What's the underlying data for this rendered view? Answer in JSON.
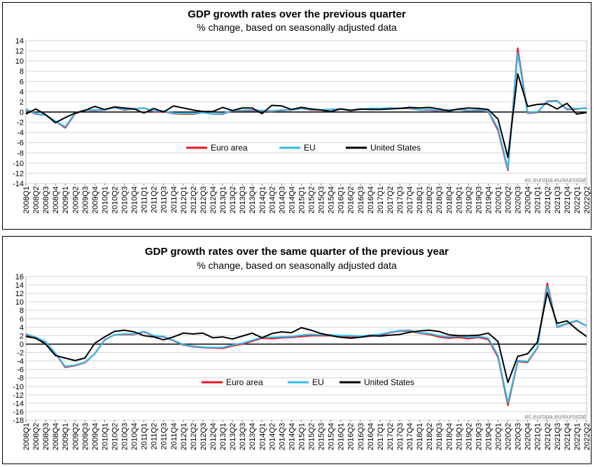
{
  "colors": {
    "euro_area": "#e8161b",
    "eu": "#33bbee",
    "us": "#000000",
    "grid": "#d4d4d4",
    "zero": "#000000"
  },
  "quarters": [
    "2008Q1",
    "2008Q2",
    "2008Q3",
    "2008Q4",
    "2009Q1",
    "2009Q2",
    "2009Q3",
    "2009Q4",
    "2010Q1",
    "2010Q2",
    "2010Q3",
    "2010Q4",
    "2011Q1",
    "2011Q2",
    "2011Q3",
    "2011Q4",
    "2012Q1",
    "2012Q2",
    "2012Q3",
    "2012Q4",
    "2013Q1",
    "2013Q2",
    "2013Q3",
    "2013Q4",
    "2014Q1",
    "2014Q2",
    "2014Q3",
    "2014Q4",
    "2015Q1",
    "2015Q2",
    "2015Q3",
    "2015Q4",
    "2016Q1",
    "2016Q2",
    "2016Q3",
    "2016Q4",
    "2017Q1",
    "2017Q2",
    "2017Q3",
    "2017Q4",
    "2018Q1",
    "2018Q2",
    "2018Q3",
    "2018Q4",
    "2019Q1",
    "2019Q2",
    "2019Q3",
    "2019Q4",
    "2020Q1",
    "2020Q2",
    "2020Q3",
    "2020Q4",
    "2021Q1",
    "2021Q2",
    "2021Q3",
    "2021Q4",
    "2022Q1",
    "2022Q2"
  ],
  "chart_data": [
    {
      "type": "line",
      "title": "GDP growth rates over the previous quarter",
      "subtitle": "% change, based on seasonally adjusted data",
      "watermark": "ec.europa.eu/eurostat",
      "ylim": [
        -14,
        14
      ],
      "ytick_step": 2,
      "grid": true,
      "legend_position": "bottom-center",
      "series": [
        {
          "name": "Euro area",
          "values": [
            0.5,
            -0.4,
            -0.6,
            -1.8,
            -3.1,
            -0.3,
            0.4,
            0.3,
            0.4,
            0.9,
            0.4,
            0.6,
            0.8,
            0.1,
            0.1,
            -0.3,
            -0.4,
            -0.4,
            -0.1,
            -0.4,
            -0.4,
            0.3,
            0.2,
            0.3,
            0.2,
            0.1,
            0.3,
            0.4,
            0.7,
            0.4,
            0.4,
            0.5,
            0.6,
            0.3,
            0.5,
            0.7,
            0.6,
            0.7,
            0.7,
            0.7,
            0.4,
            0.4,
            0.2,
            0.4,
            0.5,
            0.2,
            0.3,
            0.1,
            -3.6,
            -11.4,
            12.5,
            -0.2,
            -0.1,
            2.1,
            2.2,
            0.5,
            0.6,
            0.8
          ]
        },
        {
          "name": "EU",
          "values": [
            0.6,
            -0.3,
            -0.6,
            -1.8,
            -2.9,
            -0.2,
            0.4,
            0.4,
            0.4,
            0.9,
            0.5,
            0.6,
            0.8,
            0.2,
            0.2,
            -0.2,
            -0.3,
            -0.3,
            -0.1,
            -0.4,
            -0.3,
            0.3,
            0.3,
            0.4,
            0.3,
            0.2,
            0.4,
            0.4,
            0.7,
            0.5,
            0.4,
            0.5,
            0.6,
            0.4,
            0.5,
            0.7,
            0.7,
            0.8,
            0.7,
            0.8,
            0.4,
            0.5,
            0.3,
            0.4,
            0.5,
            0.3,
            0.4,
            0.2,
            -3.2,
            -11.1,
            11.6,
            -0.1,
            0.0,
            2.0,
            2.1,
            0.6,
            0.7,
            0.7
          ]
        },
        {
          "name": "United States",
          "values": [
            -0.4,
            0.6,
            -0.5,
            -2.1,
            -1.1,
            -0.2,
            0.3,
            1.1,
            0.5,
            1.0,
            0.8,
            0.6,
            -0.2,
            0.7,
            0.0,
            1.2,
            0.8,
            0.4,
            0.1,
            0.1,
            0.9,
            0.3,
            0.8,
            0.8,
            -0.3,
            1.3,
            1.2,
            0.5,
            0.9,
            0.6,
            0.4,
            0.1,
            0.6,
            0.3,
            0.6,
            0.5,
            0.5,
            0.6,
            0.7,
            0.9,
            0.8,
            0.9,
            0.6,
            0.2,
            0.6,
            0.8,
            0.7,
            0.5,
            -1.4,
            -8.9,
            7.5,
            1.1,
            1.5,
            1.6,
            0.6,
            1.7,
            -0.4,
            -0.1
          ]
        }
      ]
    },
    {
      "type": "line",
      "title": "GDP growth rates over the same quarter of the previous year",
      "subtitle": "% change, based on seasonally adjusted data",
      "watermark": "ec.europa.eu/eurostat",
      "ylim": [
        -18,
        16
      ],
      "ytick_step": 2,
      "grid": true,
      "legend_position": "bottom-center",
      "series": [
        {
          "name": "Euro area",
          "values": [
            2.2,
            1.4,
            0.5,
            -2.2,
            -5.5,
            -5.1,
            -4.4,
            -2.3,
            1.0,
            2.2,
            2.3,
            2.3,
            2.9,
            1.9,
            1.7,
            0.8,
            -0.2,
            -0.6,
            -0.8,
            -0.9,
            -1.0,
            -0.4,
            0.0,
            0.7,
            1.4,
            1.3,
            1.5,
            1.6,
            1.8,
            2.0,
            2.0,
            2.0,
            1.8,
            1.8,
            1.7,
            1.9,
            2.1,
            2.7,
            3.1,
            3.1,
            2.6,
            2.3,
            1.7,
            1.4,
            1.6,
            1.3,
            1.6,
            1.1,
            -3.1,
            -14.5,
            -4.1,
            -4.3,
            -0.9,
            14.4,
            4.0,
            4.8,
            5.5,
            4.3
          ]
        },
        {
          "name": "EU",
          "values": [
            2.4,
            1.6,
            0.6,
            -2.2,
            -5.3,
            -5.0,
            -4.3,
            -2.3,
            0.9,
            2.2,
            2.4,
            2.4,
            3.0,
            2.0,
            1.8,
            0.9,
            -0.1,
            -0.5,
            -0.7,
            -0.8,
            -0.8,
            -0.2,
            0.2,
            0.9,
            1.6,
            1.6,
            1.7,
            1.8,
            2.1,
            2.3,
            2.2,
            2.2,
            2.0,
            2.0,
            1.9,
            2.1,
            2.3,
            2.8,
            3.2,
            3.3,
            2.7,
            2.5,
            2.0,
            1.7,
            1.9,
            1.6,
            1.8,
            1.4,
            -2.7,
            -13.9,
            -3.9,
            -4.1,
            -0.8,
            13.7,
            4.1,
            4.9,
            5.6,
            4.3
          ]
        },
        {
          "name": "United States",
          "values": [
            1.8,
            1.4,
            0.0,
            -2.7,
            -3.3,
            -3.9,
            -3.3,
            0.2,
            1.7,
            3.0,
            3.3,
            2.9,
            2.0,
            1.7,
            1.0,
            1.7,
            2.6,
            2.4,
            2.6,
            1.5,
            1.7,
            1.2,
            1.9,
            2.6,
            1.5,
            2.5,
            2.9,
            2.7,
            3.9,
            3.3,
            2.5,
            2.0,
            1.6,
            1.4,
            1.6,
            2.0,
            1.9,
            2.1,
            2.3,
            2.8,
            3.1,
            3.3,
            3.0,
            2.2,
            2.0,
            2.0,
            2.1,
            2.6,
            0.6,
            -9.1,
            -2.9,
            -2.3,
            0.5,
            12.2,
            4.9,
            5.5,
            3.5,
            1.8
          ]
        }
      ]
    }
  ]
}
